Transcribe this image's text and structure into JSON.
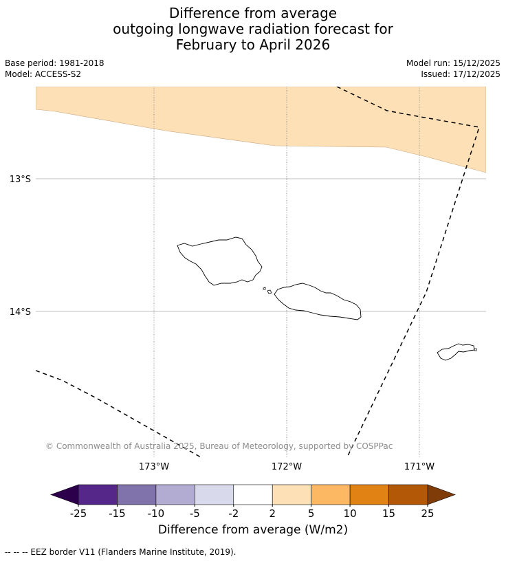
{
  "title_lines": [
    "Difference from average",
    "outgoing longwave radiation forecast for",
    "February to April 2026"
  ],
  "base_period": "Base period: 1981-2018",
  "model": "Model: ACCESS-S2",
  "model_run": "Model run: 15/12/2025",
  "issued": "Issued: 17/12/2025",
  "latitude_labels": [
    "13°S",
    "14°S"
  ],
  "longitude_labels": [
    "173°W",
    "172°W",
    "171°W"
  ],
  "copyright": "© Commonwealth of Australia 2025, Bureau of Meteorology, supported by COSPPac",
  "colorbar": {
    "label": "Difference from average (W/m2)",
    "ticks": [
      "-25",
      "-15",
      "-10",
      "-5",
      "-2",
      "2",
      "5",
      "10",
      "15",
      "25"
    ],
    "under_color": "#2d004b",
    "over_color": "#7f3b08",
    "colors": [
      "#542788",
      "#8073ac",
      "#b2abd2",
      "#d8daeb",
      "#ffffff",
      "#fee0b6",
      "#fdb863",
      "#e08214",
      "#b35806"
    ]
  },
  "anomaly_fill_color": "#fde0b6",
  "footer": "--  --  -- EEZ border V11 (Flanders Marine Institute, 2019)."
}
